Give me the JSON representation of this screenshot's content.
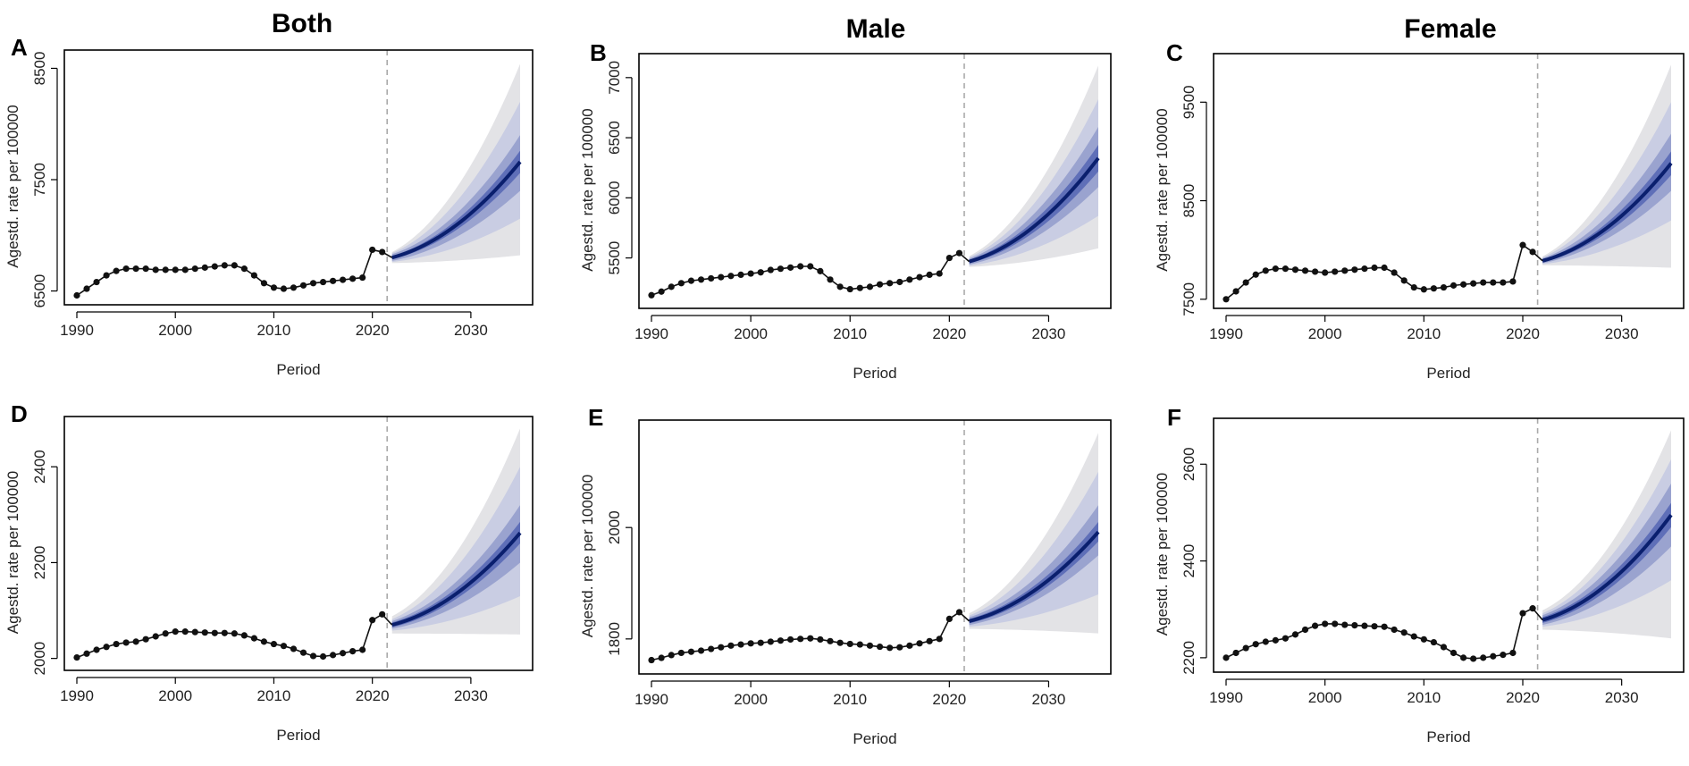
{
  "figure": {
    "column_titles": [
      "Both",
      "Male",
      "Female"
    ]
  },
  "colors": {
    "observed": "#111111",
    "median": "#0a1f6e",
    "band_inner": "#2d3f9a",
    "band_2": "#5f6fb8",
    "band_3": "#9aa3cf",
    "band_4": "#c9cde3",
    "band_outer": "#e3e3e6",
    "cutoff_line": "#aaaaaa"
  },
  "chart_data": [
    {
      "id": "A",
      "type": "line",
      "column": "Both",
      "xlabel": "Period",
      "ylabel": "Agestd. rate per 100000",
      "xlim": [
        1990,
        2035
      ],
      "ylim": [
        6440,
        8600
      ],
      "xticks": [
        1990,
        2000,
        2010,
        2020,
        2030
      ],
      "yticks": [
        6500,
        7500,
        8500
      ],
      "cutoff_year": 2021.5,
      "observed_years": [
        1990,
        1991,
        1992,
        1993,
        1994,
        1995,
        1996,
        1997,
        1998,
        1999,
        2000,
        2001,
        2002,
        2003,
        2004,
        2005,
        2006,
        2007,
        2008,
        2009,
        2010,
        2011,
        2012,
        2013,
        2014,
        2015,
        2016,
        2017,
        2018,
        2019,
        2020,
        2021
      ],
      "observed_values": [
        6460,
        6520,
        6580,
        6640,
        6680,
        6700,
        6700,
        6700,
        6690,
        6690,
        6690,
        6690,
        6700,
        6710,
        6720,
        6730,
        6730,
        6700,
        6640,
        6570,
        6530,
        6520,
        6530,
        6550,
        6570,
        6580,
        6590,
        6600,
        6610,
        6620,
        6870,
        6850
      ],
      "projection_years": [
        2022,
        2035
      ],
      "projection": {
        "median": [
          6800,
          7660
        ],
        "inner_low": [
          6785,
          7560
        ],
        "inner_high": [
          6815,
          7760
        ],
        "b2_low": [
          6770,
          7400
        ],
        "b2_high": [
          6830,
          7900
        ],
        "b3_low": [
          6760,
          7150
        ],
        "b3_high": [
          6840,
          8200
        ],
        "outer_low": [
          6750,
          6820
        ],
        "outer_high": [
          6850,
          8540
        ]
      }
    },
    {
      "id": "B",
      "type": "line",
      "column": "Male",
      "xlabel": "Period",
      "ylabel": "Agestd. rate per 100000",
      "xlim": [
        1990,
        2035
      ],
      "ylim": [
        5140,
        7140
      ],
      "xticks": [
        1990,
        2000,
        2010,
        2020,
        2030
      ],
      "yticks": [
        5500,
        6000,
        6500,
        7000
      ],
      "cutoff_year": 2021.5,
      "observed_years": [
        1990,
        1991,
        1992,
        1993,
        1994,
        1995,
        1996,
        1997,
        1998,
        1999,
        2000,
        2001,
        2002,
        2003,
        2004,
        2005,
        2006,
        2007,
        2008,
        2009,
        2010,
        2011,
        2012,
        2013,
        2014,
        2015,
        2016,
        2017,
        2018,
        2019,
        2020,
        2021
      ],
      "observed_values": [
        5190,
        5220,
        5260,
        5290,
        5310,
        5320,
        5330,
        5340,
        5350,
        5360,
        5370,
        5380,
        5400,
        5410,
        5420,
        5430,
        5430,
        5390,
        5320,
        5260,
        5240,
        5250,
        5260,
        5280,
        5290,
        5300,
        5320,
        5340,
        5360,
        5370,
        5500,
        5540
      ],
      "projection_years": [
        2022,
        2035
      ],
      "projection": {
        "median": [
          5470,
          6330
        ],
        "inner_low": [
          5455,
          6220
        ],
        "inner_high": [
          5485,
          6440
        ],
        "b2_low": [
          5445,
          6090
        ],
        "b2_high": [
          5495,
          6590
        ],
        "b3_low": [
          5435,
          5850
        ],
        "b3_high": [
          5505,
          6820
        ],
        "outer_low": [
          5425,
          5580
        ],
        "outer_high": [
          5515,
          7100
        ]
      }
    },
    {
      "id": "C",
      "type": "line",
      "column": "Female",
      "xlabel": "Period",
      "ylabel": "Agestd. rate per 100000",
      "xlim": [
        1990,
        2035
      ],
      "ylim": [
        7480,
        9920
      ],
      "xticks": [
        1990,
        2000,
        2010,
        2020,
        2030
      ],
      "yticks": [
        7500,
        8500,
        9500
      ],
      "cutoff_year": 2021.5,
      "observed_years": [
        1990,
        1991,
        1992,
        1993,
        1994,
        1995,
        1996,
        1997,
        1998,
        1999,
        2000,
        2001,
        2002,
        2003,
        2004,
        2005,
        2006,
        2007,
        2008,
        2009,
        2010,
        2011,
        2012,
        2013,
        2014,
        2015,
        2016,
        2017,
        2018,
        2019,
        2020,
        2021
      ],
      "observed_values": [
        7500,
        7580,
        7670,
        7750,
        7790,
        7810,
        7810,
        7800,
        7790,
        7780,
        7770,
        7780,
        7790,
        7800,
        7810,
        7820,
        7820,
        7770,
        7690,
        7620,
        7600,
        7610,
        7620,
        7640,
        7650,
        7660,
        7670,
        7670,
        7670,
        7680,
        8050,
        7980
      ],
      "projection_years": [
        2022,
        2035
      ],
      "projection": {
        "median": [
          7890,
          8880
        ],
        "inner_low": [
          7875,
          8760
        ],
        "inner_high": [
          7905,
          9000
        ],
        "b2_low": [
          7865,
          8600
        ],
        "b2_high": [
          7915,
          9180
        ],
        "b3_low": [
          7855,
          8300
        ],
        "b3_high": [
          7925,
          9500
        ],
        "outer_low": [
          7845,
          7820
        ],
        "outer_high": [
          7935,
          9880
        ]
      }
    },
    {
      "id": "D",
      "type": "line",
      "column": "Both",
      "xlabel": "Period",
      "ylabel": "Agestd. rate per 100000",
      "xlim": [
        1990,
        2035
      ],
      "ylim": [
        1990,
        2490
      ],
      "xticks": [
        1990,
        2000,
        2010,
        2020,
        2030
      ],
      "yticks": [
        2000,
        2200,
        2400
      ],
      "cutoff_year": 2021.5,
      "observed_years": [
        1990,
        1991,
        1992,
        1993,
        1994,
        1995,
        1996,
        1997,
        1998,
        1999,
        2000,
        2001,
        2002,
        2003,
        2004,
        2005,
        2006,
        2007,
        2008,
        2009,
        2010,
        2011,
        2012,
        2013,
        2014,
        2015,
        2016,
        2017,
        2018,
        2019,
        2020,
        2021
      ],
      "observed_values": [
        2002,
        2010,
        2018,
        2024,
        2030,
        2033,
        2035,
        2040,
        2046,
        2052,
        2056,
        2056,
        2055,
        2054,
        2053,
        2053,
        2052,
        2048,
        2042,
        2035,
        2030,
        2026,
        2020,
        2012,
        2005,
        2004,
        2007,
        2011,
        2015,
        2018,
        2080,
        2092
      ],
      "projection_years": [
        2022,
        2035
      ],
      "projection": {
        "median": [
          2070,
          2262
        ],
        "inner_low": [
          2065,
          2240
        ],
        "inner_high": [
          2075,
          2285
        ],
        "b2_low": [
          2062,
          2200
        ],
        "b2_high": [
          2078,
          2320
        ],
        "b3_low": [
          2058,
          2130
        ],
        "b3_high": [
          2082,
          2400
        ],
        "outer_low": [
          2052,
          2050
        ],
        "outer_high": [
          2088,
          2480
        ]
      }
    },
    {
      "id": "E",
      "type": "line",
      "column": "Male",
      "xlabel": "Period",
      "ylabel": "Agestd. rate per 100000",
      "xlim": [
        1990,
        2035
      ],
      "ylim": [
        1750,
        2180
      ],
      "xticks": [
        1990,
        2000,
        2010,
        2020,
        2030
      ],
      "yticks": [
        1800,
        2000
      ],
      "cutoff_year": 2021.5,
      "observed_years": [
        1990,
        1991,
        1992,
        1993,
        1994,
        1995,
        1996,
        1997,
        1998,
        1999,
        2000,
        2001,
        2002,
        2003,
        2004,
        2005,
        2006,
        2007,
        2008,
        2009,
        2010,
        2011,
        2012,
        2013,
        2014,
        2015,
        2016,
        2017,
        2018,
        2019,
        2020,
        2021
      ],
      "observed_values": [
        1762,
        1766,
        1771,
        1775,
        1777,
        1779,
        1782,
        1785,
        1788,
        1790,
        1792,
        1793,
        1795,
        1797,
        1799,
        1800,
        1801,
        1799,
        1796,
        1793,
        1791,
        1790,
        1788,
        1786,
        1784,
        1785,
        1788,
        1792,
        1796,
        1800,
        1836,
        1848
      ],
      "projection_years": [
        2022,
        2035
      ],
      "projection": {
        "median": [
          1832,
          1992
        ],
        "inner_low": [
          1828,
          1975
        ],
        "inner_high": [
          1836,
          2010
        ],
        "b2_low": [
          1825,
          1950
        ],
        "b2_high": [
          1839,
          2040
        ],
        "b3_low": [
          1822,
          1880
        ],
        "b3_high": [
          1842,
          2100
        ],
        "outer_low": [
          1818,
          1810
        ],
        "outer_high": [
          1846,
          2170
        ]
      }
    },
    {
      "id": "F",
      "type": "line",
      "column": "Female",
      "xlabel": "Period",
      "ylabel": "Agestd. rate per 100000",
      "xlim": [
        1990,
        2035
      ],
      "ylim": [
        2185,
        2680
      ],
      "xticks": [
        1990,
        2000,
        2010,
        2020,
        2030
      ],
      "yticks": [
        2200,
        2400,
        2600
      ],
      "cutoff_year": 2021.5,
      "observed_years": [
        1990,
        1991,
        1992,
        1993,
        1994,
        1995,
        1996,
        1997,
        1998,
        1999,
        2000,
        2001,
        2002,
        2003,
        2004,
        2005,
        2006,
        2007,
        2008,
        2009,
        2010,
        2011,
        2012,
        2013,
        2014,
        2015,
        2016,
        2017,
        2018,
        2019,
        2020,
        2021
      ],
      "observed_values": [
        2200,
        2210,
        2220,
        2228,
        2233,
        2236,
        2240,
        2248,
        2258,
        2266,
        2270,
        2270,
        2268,
        2267,
        2266,
        2265,
        2264,
        2258,
        2252,
        2244,
        2238,
        2232,
        2222,
        2210,
        2200,
        2198,
        2200,
        2203,
        2206,
        2210,
        2292,
        2302
      ],
      "projection_years": [
        2022,
        2035
      ],
      "projection": {
        "median": [
          2278,
          2495
        ],
        "inner_low": [
          2272,
          2470
        ],
        "inner_high": [
          2284,
          2520
        ],
        "b2_low": [
          2268,
          2430
        ],
        "b2_high": [
          2288,
          2560
        ],
        "b3_low": [
          2264,
          2360
        ],
        "b3_high": [
          2292,
          2610
        ],
        "outer_low": [
          2258,
          2240
        ],
        "outer_high": [
          2298,
          2670
        ]
      }
    }
  ]
}
